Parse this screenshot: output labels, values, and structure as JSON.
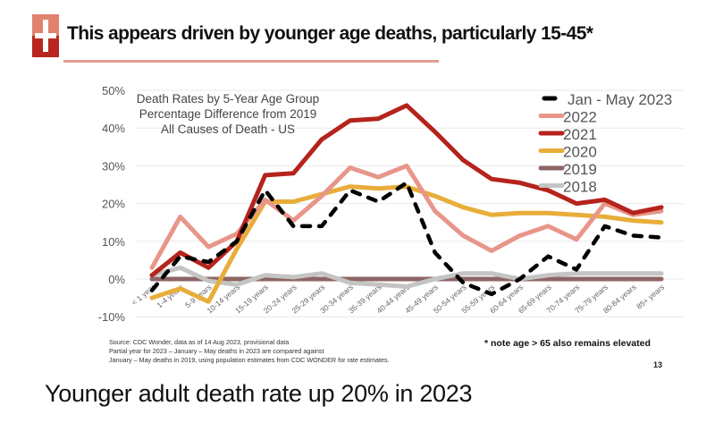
{
  "header": {
    "title": "This appears driven by younger age deaths, particularly 15-45*",
    "logo_icon": "red-cross-logo",
    "logo_colors": {
      "top": "#e0826e",
      "bottom": "#b8261f"
    },
    "rule_color": "#e0a090"
  },
  "chart_data": {
    "type": "line",
    "title": "Death Rates by 5-Year Age Group",
    "subtitle_lines": [
      "Percentage Difference from 2019",
      "All Causes of Death - US"
    ],
    "xlabel": "",
    "ylabel": "",
    "ylim": [
      -10,
      50
    ],
    "yticks": [
      -10,
      0,
      10,
      20,
      30,
      40,
      50
    ],
    "ytick_labels": [
      "-10%",
      "0%",
      "10%",
      "20%",
      "30%",
      "40%",
      "50%"
    ],
    "grid": true,
    "legend_position": "top-right",
    "categories": [
      "< 1 year",
      "1-4 years",
      "5-9 years",
      "10-14 years",
      "15-19 years",
      "20-24 years",
      "25-29 years",
      "30-34 years",
      "35-39 years",
      "40-44 years",
      "45-49 years",
      "50-54 years",
      "55-59 years",
      "60-64 years",
      "65-69 years",
      "70-74 years",
      "75-79 years",
      "80-84 years",
      "85+ years"
    ],
    "series": [
      {
        "name": "Jan - May 2023",
        "color": "#000000",
        "dashed": true,
        "values": [
          -3,
          6,
          4.5,
          10,
          23.5,
          14,
          14,
          23.5,
          20.5,
          25.5,
          7,
          -1,
          -4,
          0,
          6,
          2.5,
          14,
          11.5,
          11
        ]
      },
      {
        "name": "2022",
        "color": "#e8968a",
        "dashed": false,
        "values": [
          3,
          16.5,
          8.5,
          12,
          21,
          15.5,
          22,
          29.5,
          27,
          30,
          18,
          11.5,
          7.5,
          11.5,
          14,
          10.5,
          20,
          17,
          18
        ]
      },
      {
        "name": "2021",
        "color": "#b5231c",
        "dashed": false,
        "values": [
          1,
          7,
          3,
          10,
          27.5,
          28,
          37,
          42,
          42.5,
          46,
          39,
          31.5,
          26.5,
          25.5,
          23.5,
          20,
          21,
          17.5,
          19
        ]
      },
      {
        "name": "2020",
        "color": "#e8ad3a",
        "dashed": false,
        "values": [
          -5,
          -2.5,
          -6,
          8,
          20.5,
          20.5,
          22.5,
          24.5,
          24,
          24.5,
          22,
          19,
          17,
          17.5,
          17.5,
          17,
          16.5,
          15.5,
          15
        ]
      },
      {
        "name": "2019",
        "color": "#8e6464",
        "dashed": false,
        "values": [
          0,
          0,
          0,
          0,
          0,
          0,
          0,
          0,
          0,
          0,
          0,
          0,
          0,
          0,
          0,
          0,
          0,
          0,
          0
        ]
      },
      {
        "name": "2018",
        "color": "#c4c4c4",
        "dashed": false,
        "values": [
          1,
          3,
          -0.5,
          -1.5,
          1,
          0.5,
          1.5,
          -1,
          -1.5,
          -2,
          0,
          1.5,
          1.5,
          0,
          1,
          1.5,
          1.5,
          1.5,
          1.5
        ]
      }
    ]
  },
  "footer": {
    "source_lines": [
      "Source: CDC Wonder, data as of 14 Aug 2023, provisional data",
      "Partial year for 2023 – January – May deaths in 2023 are compared against",
      "January – May deaths in 2019, using population estimates from CDC WONDER for rate estimates."
    ],
    "note": "* note age > 65 also remains elevated",
    "page_number": "13"
  },
  "caption": "Younger adult death rate up 20% in 2023"
}
